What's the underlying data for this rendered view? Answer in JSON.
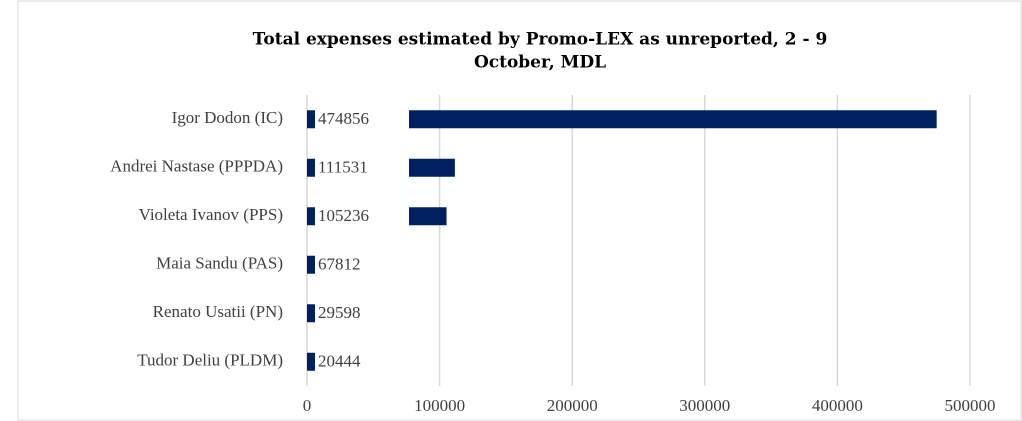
{
  "chart_data": {
    "type": "barh",
    "title_lines": [
      "Total expenses estimated by Promo-LEX as unreported, 2 - 9",
      "October, MDL"
    ],
    "categories": [
      "Igor Dodon (IC)",
      "Andrei Nastase (PPPDA)",
      "Violeta Ivanov (PPS)",
      "Maia Sandu (PAS)",
      "Renato Usatii (PN)",
      "Tudor Deliu (PLDM)"
    ],
    "values": [
      474856,
      111531,
      105236,
      67812,
      29598,
      20444
    ],
    "color": "#002060",
    "xlim": [
      0,
      500000
    ],
    "xticks": [
      0,
      100000,
      200000,
      300000,
      400000,
      500000
    ],
    "grid": true
  }
}
